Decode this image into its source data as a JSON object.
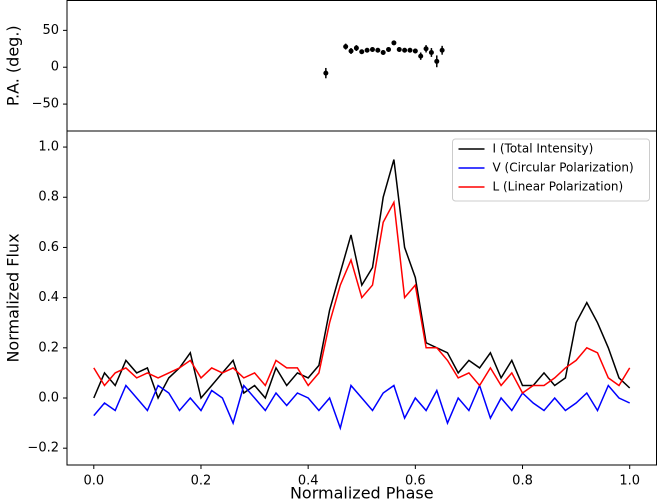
{
  "chart_data": [
    {
      "type": "scatter",
      "ylabel": "P.A. (deg.)",
      "x": [
        0.433,
        0.47,
        0.48,
        0.49,
        0.5,
        0.51,
        0.52,
        0.53,
        0.54,
        0.55,
        0.56,
        0.57,
        0.58,
        0.59,
        0.6,
        0.61,
        0.62,
        0.63,
        0.64,
        0.65
      ],
      "values": [
        -8,
        28,
        22,
        26,
        21,
        23,
        24,
        23,
        20,
        24,
        33,
        24,
        23,
        23,
        22,
        15,
        25,
        20,
        8,
        23
      ],
      "errors": [
        7,
        4,
        4,
        4,
        3,
        3,
        3,
        3,
        3,
        3,
        3,
        3,
        3,
        3,
        3,
        5,
        5,
        6,
        8,
        6
      ],
      "color": "#000000",
      "xlim": [
        -0.05,
        1.05
      ],
      "ylim": [
        -86.5,
        90.5
      ],
      "yticks": [
        {
          "value": -50,
          "label": "−50"
        },
        0,
        50
      ]
    },
    {
      "type": "line",
      "xlabel": "Normalized Phase",
      "ylabel": "Normalized Flux",
      "legend": "upper right",
      "x": [
        0,
        0.02,
        0.04,
        0.06,
        0.08,
        0.1,
        0.12,
        0.14,
        0.16,
        0.18,
        0.2,
        0.22,
        0.24,
        0.26,
        0.28,
        0.3,
        0.32,
        0.34,
        0.36,
        0.38,
        0.4,
        0.42,
        0.44,
        0.46,
        0.48,
        0.5,
        0.52,
        0.54,
        0.56,
        0.58,
        0.6,
        0.62,
        0.64,
        0.66,
        0.68,
        0.7,
        0.72,
        0.74,
        0.76,
        0.78,
        0.8,
        0.82,
        0.84,
        0.86,
        0.88,
        0.9,
        0.92,
        0.94,
        0.96,
        0.98,
        1.0
      ],
      "series": [
        {
          "name": "I (Total Intensity)",
          "color": "#000000",
          "values": [
            0.0,
            0.1,
            0.05,
            0.15,
            0.1,
            0.12,
            0.0,
            0.08,
            0.12,
            0.18,
            0.0,
            0.05,
            0.1,
            0.15,
            0.02,
            0.05,
            0.0,
            0.12,
            0.05,
            0.1,
            0.08,
            0.13,
            0.35,
            0.5,
            0.65,
            0.45,
            0.52,
            0.8,
            0.95,
            0.6,
            0.48,
            0.22,
            0.2,
            0.18,
            0.1,
            0.15,
            0.12,
            0.18,
            0.08,
            0.15,
            0.05,
            0.05,
            0.1,
            0.05,
            0.08,
            0.3,
            0.38,
            0.3,
            0.2,
            0.08,
            0.04
          ]
        },
        {
          "name": "V (Circular Polarization)",
          "color": "#0000ff",
          "values": [
            -0.07,
            -0.02,
            -0.05,
            0.05,
            0.0,
            -0.05,
            0.05,
            0.02,
            -0.05,
            0.0,
            -0.05,
            0.03,
            0.0,
            -0.1,
            0.05,
            0.0,
            -0.05,
            0.02,
            -0.03,
            0.02,
            0.0,
            -0.05,
            0.0,
            -0.12,
            0.05,
            0.0,
            -0.05,
            0.02,
            0.05,
            -0.08,
            0.0,
            -0.05,
            0.03,
            -0.1,
            0.0,
            -0.05,
            0.05,
            -0.08,
            0.0,
            -0.05,
            0.02,
            -0.02,
            -0.05,
            0.0,
            -0.05,
            -0.02,
            0.02,
            -0.05,
            0.05,
            0.0,
            -0.02
          ]
        },
        {
          "name": "L (Linear Polarization)",
          "color": "#ff0000",
          "values": [
            0.12,
            0.05,
            0.1,
            0.12,
            0.08,
            0.1,
            0.08,
            0.1,
            0.12,
            0.15,
            0.08,
            0.12,
            0.1,
            0.12,
            0.08,
            0.1,
            0.05,
            0.15,
            0.12,
            0.12,
            0.05,
            0.1,
            0.3,
            0.45,
            0.55,
            0.4,
            0.45,
            0.7,
            0.78,
            0.4,
            0.45,
            0.2,
            0.2,
            0.15,
            0.08,
            0.1,
            0.05,
            0.12,
            0.05,
            0.1,
            0.02,
            0.05,
            0.05,
            0.08,
            0.12,
            0.15,
            0.2,
            0.18,
            0.08,
            0.05,
            0.12
          ]
        }
      ],
      "xlim": [
        -0.05,
        1.05
      ],
      "ylim": [
        -0.267,
        1.064
      ],
      "xticks": [
        {
          "value": 0,
          "label": "0.0"
        },
        0.2,
        0.4,
        0.6,
        0.8,
        {
          "value": 1,
          "label": "1.0"
        }
      ],
      "yticks": [
        {
          "value": -0.2,
          "label": "−0.2"
        },
        {
          "value": 0,
          "label": "0.0"
        },
        0.2,
        0.4,
        0.6,
        0.8,
        {
          "value": 1,
          "label": "1.0"
        }
      ]
    }
  ]
}
